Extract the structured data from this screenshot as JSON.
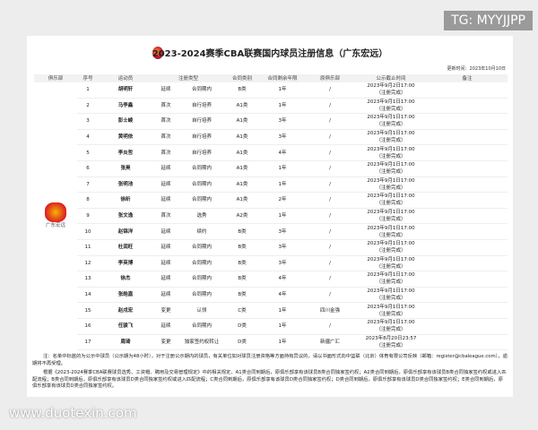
{
  "watermark_top": "TG: MYYJJPP",
  "watermark_bottom": "www.duotexin.com",
  "title": "2023-2024赛季CBA联赛国内球员注册信息（广东宏远）",
  "update_time": "更新时间：2023年10月10日",
  "club_name": "广东宏远",
  "headers": [
    "俱乐部",
    "序号",
    "运动员",
    "注册类型",
    "合同类别",
    "合同剩余年限",
    "原俱乐部",
    "公示截止时间",
    "备注"
  ],
  "rows": [
    {
      "no": "1",
      "name": "胡明轩",
      "t1": "延续",
      "t2": "合同期内",
      "cls": "B类",
      "yrs": "1年",
      "orig": "/",
      "deadline": "2023年9月2日17:00",
      "status": "（注册完成）"
    },
    {
      "no": "2",
      "name": "马李鑫",
      "t1": "首次",
      "t2": "自行培养",
      "cls": "A1类",
      "yrs": "1年",
      "orig": "/",
      "deadline": "2023年9月1日17:00",
      "status": "（注册完成）"
    },
    {
      "no": "3",
      "name": "彭士崚",
      "t1": "首次",
      "t2": "自行培养",
      "cls": "A1类",
      "yrs": "3年",
      "orig": "/",
      "deadline": "2023年9月1日17:00",
      "status": "（注册完成）"
    },
    {
      "no": "4",
      "name": "黄明依",
      "t1": "首次",
      "t2": "自行培养",
      "cls": "A1类",
      "yrs": "3年",
      "orig": "/",
      "deadline": "2023年9月1日17:00",
      "status": "（注册完成）"
    },
    {
      "no": "5",
      "name": "李炎哲",
      "t1": "首次",
      "t2": "自行培养",
      "cls": "A1类",
      "yrs": "4年",
      "orig": "/",
      "deadline": "2023年9月1日17:00",
      "status": "（注册完成）"
    },
    {
      "no": "6",
      "name": "张昊",
      "t1": "延续",
      "t2": "合同期内",
      "cls": "A1类",
      "yrs": "1年",
      "orig": "/",
      "deadline": "2023年9月1日17:00",
      "status": "（注册完成）"
    },
    {
      "no": "7",
      "name": "张明池",
      "t1": "延续",
      "t2": "合同期内",
      "cls": "A1类",
      "yrs": "1年",
      "orig": "/",
      "deadline": "2023年9月1日17:00",
      "status": "（注册完成）"
    },
    {
      "no": "8",
      "name": "徐昕",
      "t1": "延续",
      "t2": "合同期内",
      "cls": "A1类",
      "yrs": "2年",
      "orig": "/",
      "deadline": "2023年9月1日17:00",
      "status": "（注册完成）"
    },
    {
      "no": "9",
      "name": "张文逸",
      "t1": "首次",
      "t2": "选秀",
      "cls": "A2类",
      "yrs": "1年",
      "orig": "/",
      "deadline": "2023年9月1日17:00",
      "status": "（注册完成）"
    },
    {
      "no": "10",
      "name": "赵锦洋",
      "t1": "延续",
      "t2": "续约",
      "cls": "B类",
      "yrs": "3年",
      "orig": "/",
      "deadline": "2023年9月1日17:00",
      "status": "（注册完成）"
    },
    {
      "no": "11",
      "name": "杜润旺",
      "t1": "延续",
      "t2": "合同期内",
      "cls": "B类",
      "yrs": "3年",
      "orig": "/",
      "deadline": "2023年9月1日17:00",
      "status": "（注册完成）"
    },
    {
      "no": "12",
      "name": "李英博",
      "t1": "延续",
      "t2": "合同期内",
      "cls": "B类",
      "yrs": "3年",
      "orig": "/",
      "deadline": "2023年9月1日17:00",
      "status": "（注册完成）"
    },
    {
      "no": "13",
      "name": "徐杰",
      "t1": "延续",
      "t2": "合同期内",
      "cls": "B类",
      "yrs": "4年",
      "orig": "/",
      "deadline": "2023年9月1日17:00",
      "status": "（注册完成）"
    },
    {
      "no": "14",
      "name": "张皓嘉",
      "t1": "延续",
      "t2": "合同期内",
      "cls": "B类",
      "yrs": "4年",
      "orig": "/",
      "deadline": "2023年9月1日17:00",
      "status": "（注册完成）"
    },
    {
      "no": "15",
      "name": "赵戌宏",
      "t1": "变更",
      "t2": "认领",
      "cls": "C类",
      "yrs": "1年",
      "orig": "四川金强",
      "deadline": "2023年9月1日17:00",
      "status": "（注册完成）"
    },
    {
      "no": "16",
      "name": "任骏飞",
      "t1": "延续",
      "t2": "合同期内",
      "cls": "D类",
      "yrs": "1年",
      "orig": "/",
      "deadline": "2023年9月1日17:00",
      "status": "（注册完成）"
    },
    {
      "no": "17",
      "name": "周琦",
      "t1": "变更",
      "t2": "独家签约权转让",
      "cls": "D类",
      "yrs": "1年",
      "orig": "新疆广汇",
      "deadline": "2023年8月20日23:57",
      "status": "（注册完成）"
    }
  ],
  "notes": [
    "注：名单中标蓝的为公示中球员（公示期为48小时），对于注册公示期内的球员，有关单位如对球员注册资格等方面持有异议的，请以书面形式向中篮联（北京）体育有限公司反映（邮箱：register@cbaleague.com），逾期将不再受理。",
    "根据《2023-2024赛季CBA联赛球员选秀、工资帽、聘用及交易管理规定》中的相关规定，A1类合同到期后，原俱乐部享有该球员B类合同独家签约权；A2类合同到期后，原俱乐部享有该球员B类合同独家签约权或进入匹配流程；B类合同到期后，原俱乐部享有该球员D类合同独家签约权或进入匹配流程；C类合同到期后，原俱乐部享有该球员D类合同独家签约权；D类合同到期后，原俱乐部享有该球员D类合同独家签约权；E类合同到期后，原俱乐部享有该球员D类合同独家签约权。"
  ]
}
